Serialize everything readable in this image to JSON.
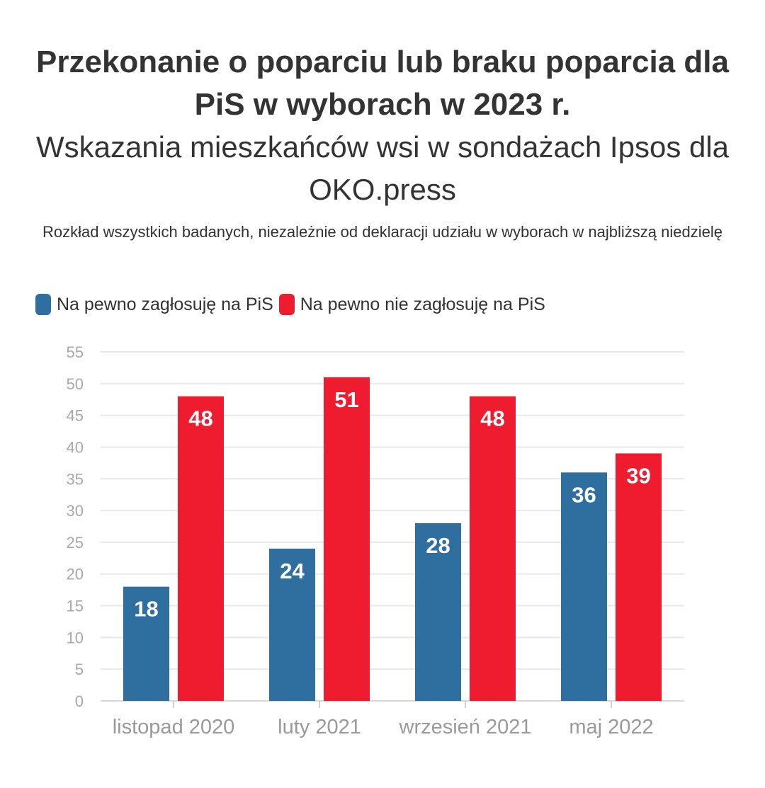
{
  "header": {
    "title": "Przekonanie o poparciu lub braku poparcia dla PiS w wyborach w 2023 r.",
    "subtitle": "Wskazania mieszkańców wsi w sondażach Ipsos dla OKO.press",
    "note": "Rozkład wszystkich badanych, niezależnie od deklaracji udziału w wyborach w najbliższą niedzielę"
  },
  "legend": [
    {
      "label": "Na pewno zagłosuję na PiS",
      "color": "#2f6f9f"
    },
    {
      "label": "Na pewno nie zagłosuję na PiS",
      "color": "#ee1c2e"
    }
  ],
  "chart_data": {
    "type": "bar",
    "categories": [
      "listopad 2020",
      "luty 2021",
      "wrzesień 2021",
      "maj 2022"
    ],
    "series": [
      {
        "name": "Na pewno zagłosuję na PiS",
        "values": [
          18,
          24,
          28,
          36
        ],
        "color": "#2f6f9f"
      },
      {
        "name": "Na pewno nie zagłosuję na PiS",
        "values": [
          48,
          51,
          48,
          39
        ],
        "color": "#ee1c2e"
      }
    ],
    "yticks": [
      0,
      5,
      10,
      15,
      20,
      25,
      30,
      35,
      40,
      45,
      50,
      55
    ],
    "ylim": [
      0,
      55
    ],
    "grid": true,
    "legend_position": "top-left"
  }
}
